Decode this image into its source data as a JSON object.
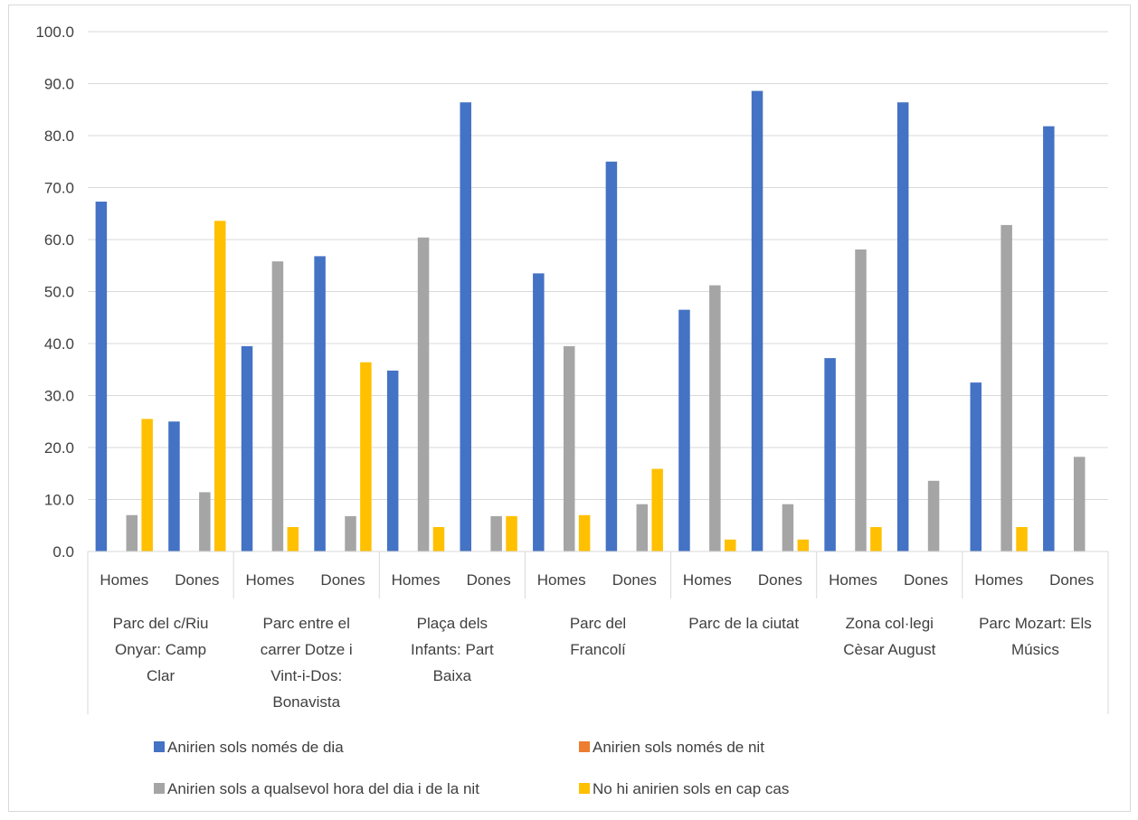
{
  "chart_data": {
    "type": "bar",
    "title": "",
    "xlabel": "",
    "ylabel": "",
    "ylim": [
      0,
      100
    ],
    "ytick_labels": [
      "0.0",
      "10.0",
      "20.0",
      "30.0",
      "40.0",
      "50.0",
      "60.0",
      "70.0",
      "80.0",
      "90.0",
      "100.0"
    ],
    "grid": true,
    "legend_position": "bottom",
    "groups": [
      {
        "label_lines": [
          "Parc del c/Riu",
          "Onyar: Camp",
          "Clar"
        ]
      },
      {
        "label_lines": [
          "Parc entre el",
          "carrer Dotze i",
          "Vint-i-Dos:",
          "Bonavista"
        ]
      },
      {
        "label_lines": [
          "Plaça dels",
          "Infants: Part",
          "Baixa"
        ]
      },
      {
        "label_lines": [
          "Parc del",
          "Francolí"
        ]
      },
      {
        "label_lines": [
          "Parc de la ciutat"
        ]
      },
      {
        "label_lines": [
          "Zona col·legi",
          "Cèsar August"
        ]
      },
      {
        "label_lines": [
          "Parc Mozart: Els",
          "Músics"
        ]
      }
    ],
    "categories": [
      "Homes",
      "Dones",
      "Homes",
      "Dones",
      "Homes",
      "Dones",
      "Homes",
      "Dones",
      "Homes",
      "Dones",
      "Homes",
      "Dones",
      "Homes",
      "Dones"
    ],
    "series": [
      {
        "name": "Anirien sols només de dia",
        "color": "#4472C4",
        "values": [
          67.3,
          25.0,
          39.5,
          56.8,
          34.8,
          86.4,
          53.5,
          75.0,
          46.5,
          88.6,
          37.2,
          86.4,
          32.5,
          81.8
        ]
      },
      {
        "name": "Anirien sols només de nit",
        "color": "#ED7D31",
        "values": [
          0,
          0,
          0,
          0,
          0,
          0,
          0,
          0,
          0,
          0,
          0,
          0,
          0,
          0
        ]
      },
      {
        "name": "Anirien sols a qualsevol hora del dia i de la nit",
        "color": "#A5A5A5",
        "values": [
          7.0,
          11.4,
          55.8,
          6.8,
          60.4,
          6.8,
          39.5,
          9.1,
          51.2,
          9.1,
          58.1,
          13.6,
          62.8,
          18.2
        ]
      },
      {
        "name": "No hi anirien sols en cap cas",
        "color": "#FFC000",
        "values": [
          25.5,
          63.6,
          4.7,
          36.4,
          4.7,
          6.8,
          7.0,
          15.9,
          2.3,
          2.3,
          4.7,
          0,
          4.7,
          0
        ]
      }
    ]
  }
}
